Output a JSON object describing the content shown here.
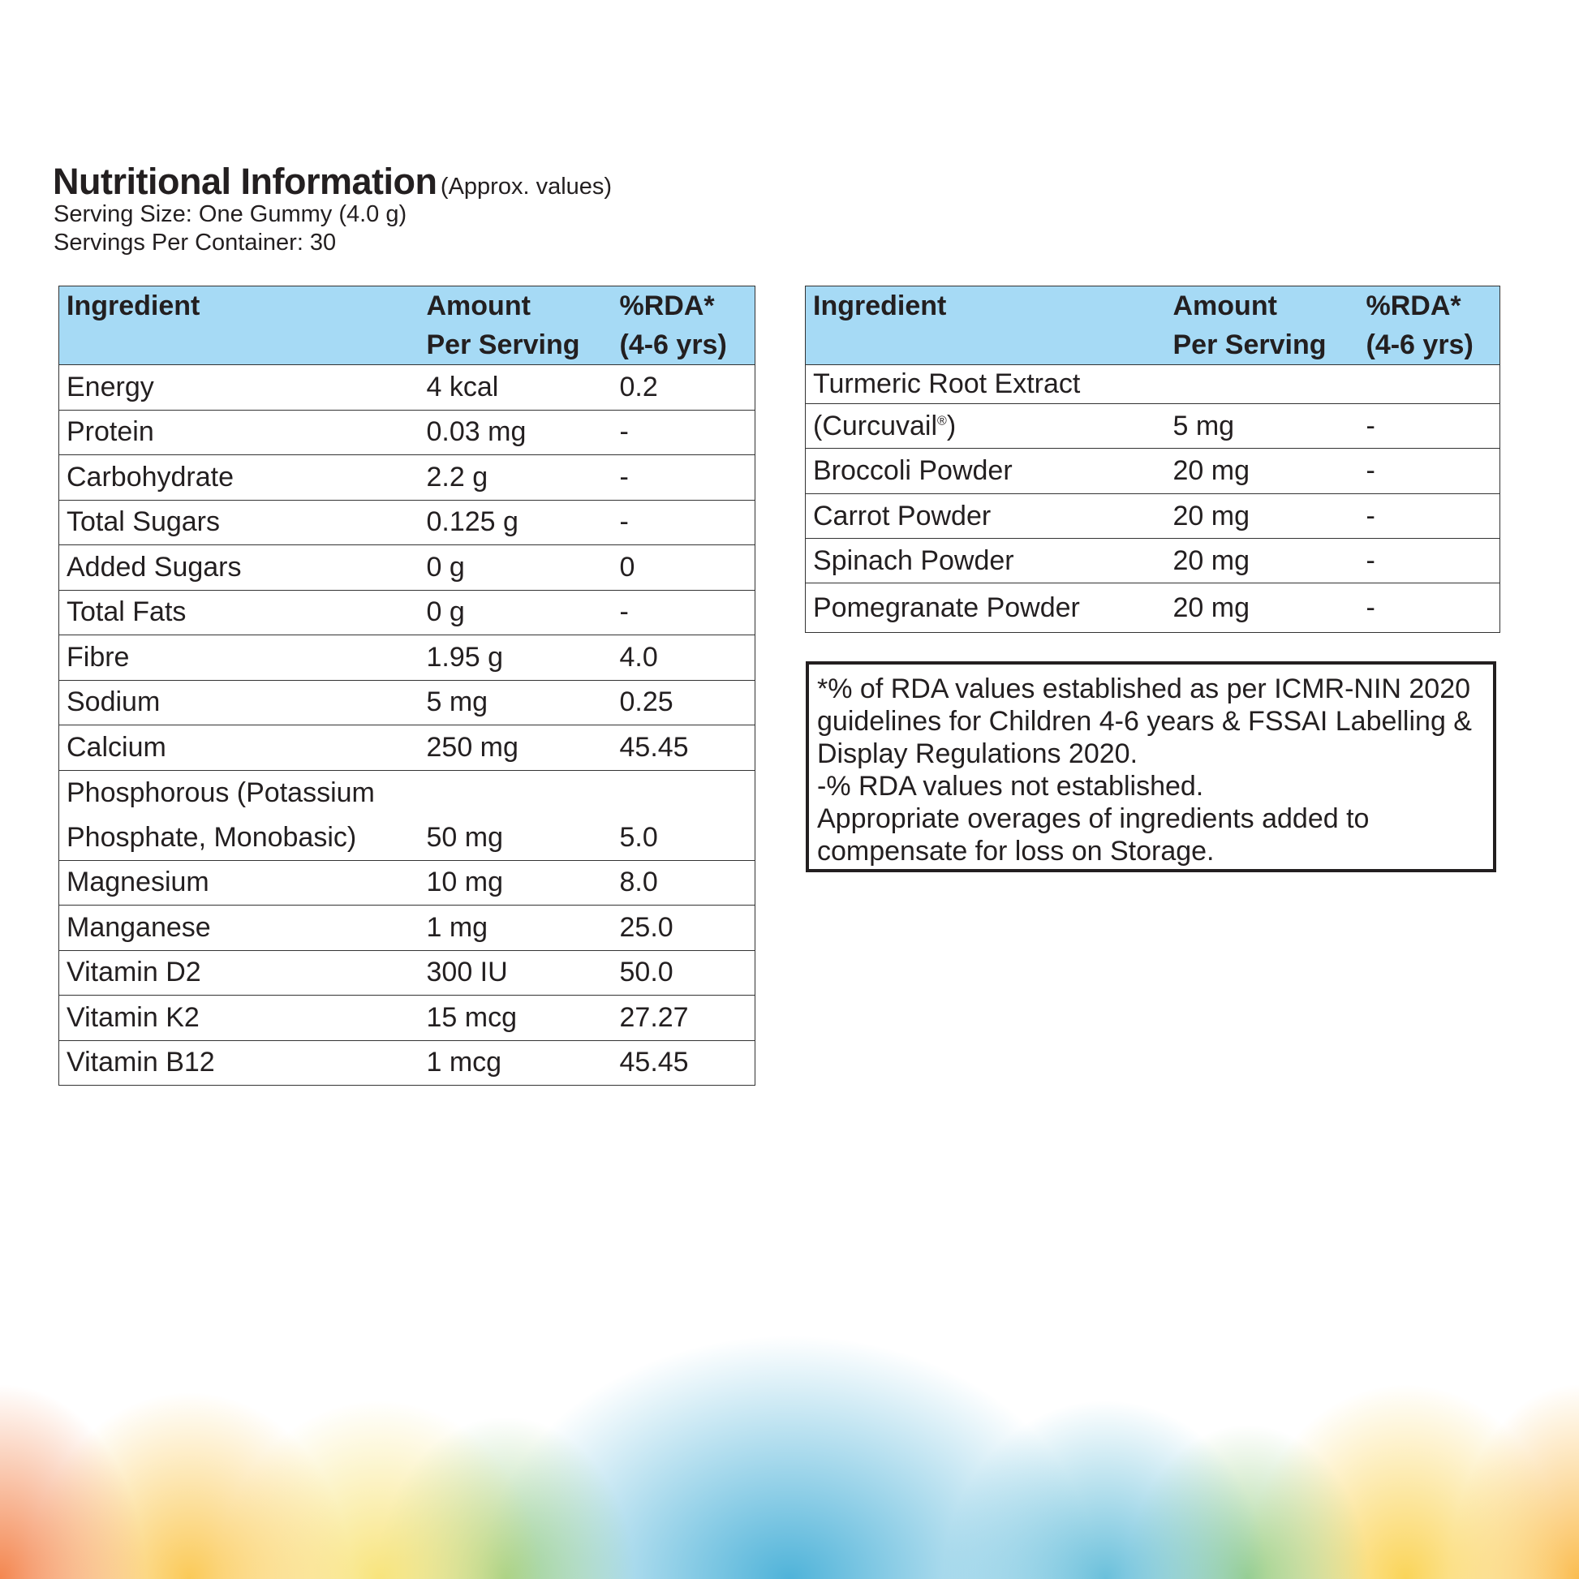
{
  "header": {
    "title": "Nutritional Information",
    "subtitle": "(Approx. values)",
    "serving_size": "Serving Size: One Gummy (4.0 g)",
    "servings_per_container": "Servings Per Container: 30"
  },
  "columns": {
    "ingredient": "Ingredient",
    "amount_1": "Amount",
    "amount_2": "Per Serving",
    "rda_1": "%RDA*",
    "rda_2": "(4-6 yrs)"
  },
  "left_rows": [
    {
      "ingredient": "Energy",
      "amount": "4 kcal",
      "rda": "0.2"
    },
    {
      "ingredient": "Protein",
      "amount": "0.03 mg",
      "rda": "-"
    },
    {
      "ingredient": "Carbohydrate",
      "amount": "2.2 g",
      "rda": "-"
    },
    {
      "ingredient": "Total Sugars",
      "amount": "0.125 g",
      "rda": "-"
    },
    {
      "ingredient": "Added Sugars",
      "amount": "0 g",
      "rda": "0"
    },
    {
      "ingredient": "Total Fats",
      "amount": "0 g",
      "rda": "-"
    },
    {
      "ingredient": "Fibre",
      "amount": "1.95 g",
      "rda": "4.0"
    },
    {
      "ingredient": "Sodium",
      "amount": "5 mg",
      "rda": "0.25"
    },
    {
      "ingredient": "Calcium",
      "amount": "250 mg",
      "rda": "45.45"
    },
    {
      "ingredient": "Phosphorous (Potassium",
      "ingredient_2": "Phosphate, Monobasic)",
      "amount": "50 mg",
      "rda": "5.0"
    },
    {
      "ingredient": "Magnesium",
      "amount": "10 mg",
      "rda": "8.0"
    },
    {
      "ingredient": "Manganese",
      "amount": "1 mg",
      "rda": "25.0"
    },
    {
      "ingredient": "Vitamin D2",
      "amount": "300 IU",
      "rda": "50.0"
    },
    {
      "ingredient": "Vitamin K2",
      "amount": "15 mcg",
      "rda": "27.27"
    },
    {
      "ingredient": "Vitamin B12",
      "amount": "1 mcg",
      "rda": "45.45"
    }
  ],
  "right_rows": [
    {
      "ingredient": "Turmeric Root Extract",
      "amount": "",
      "rda": ""
    },
    {
      "ingredient": "(Curcuvail",
      "sup": "®",
      "ingredient_end": ")",
      "amount": "5 mg",
      "rda": "-"
    },
    {
      "ingredient": "Broccoli Powder",
      "amount": "20 mg",
      "rda": "-"
    },
    {
      "ingredient": "Carrot Powder",
      "amount": "20 mg",
      "rda": "-"
    },
    {
      "ingredient": "Spinach Powder",
      "amount": "20 mg",
      "rda": "-"
    },
    {
      "ingredient": "Pomegranate Powder",
      "amount": "20 mg",
      "rda": "-"
    }
  ],
  "note": {
    "lines": [
      "*% of RDA values established as per ICMR-NIN 2020",
      "guidelines for Children 4-6 years & FSSAI Labelling &",
      "Display Regulations 2020.",
      "-% RDA values not established.",
      "Appropriate overages of ingredients added to",
      "compensate for loss on Storage."
    ]
  },
  "colors": {
    "header_bg": "#a6daf5",
    "text": "#231f20"
  }
}
